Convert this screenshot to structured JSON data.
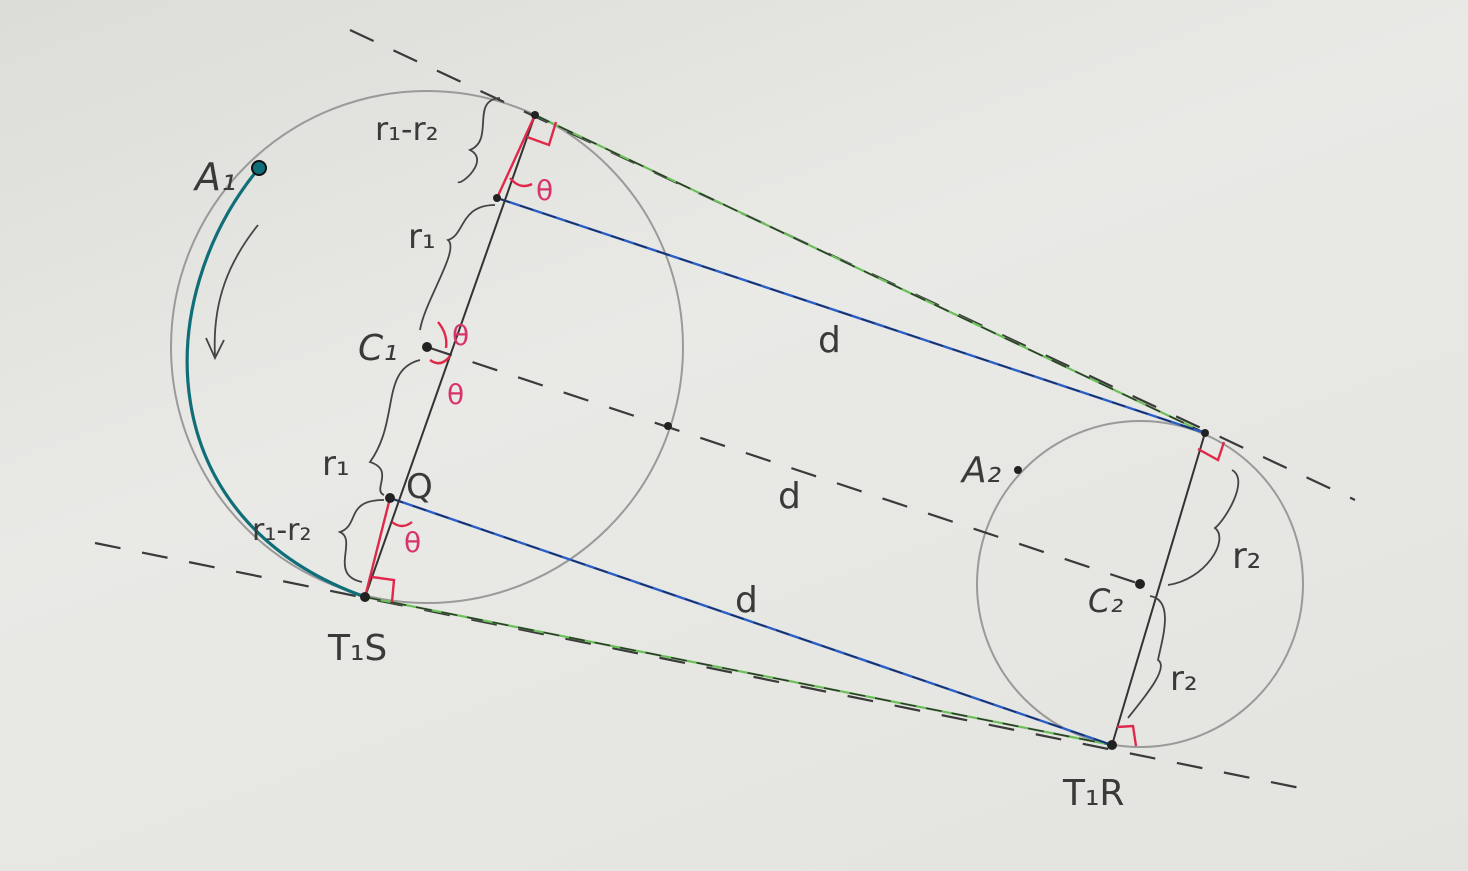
{
  "labels": {
    "A1": "A₁",
    "A2": "A₂",
    "C1": "C₁",
    "C2": "C₂",
    "Q": "Q",
    "T1S": "T₁S",
    "T1R": "T₁R",
    "d_top": "d",
    "d_middle": "d",
    "d_bottom": "d",
    "r1_upper": "r₁",
    "r1_lower": "r₁",
    "r1_minus_r2_upper": "r₁-r₂",
    "r1_minus_r2_lower": "r₁-r₂",
    "r2_upper": "r₂",
    "r2_lower": "r₂",
    "theta_top": "θ",
    "theta_c1_upper": "θ",
    "theta_c1_lower": "θ",
    "theta_q": "θ"
  },
  "colors": {
    "pencil": "#9a9a9a",
    "tangent_green": "#6cc05a",
    "distance_blue": "#2a5fc7",
    "angle_red": "#e0294a",
    "arc_teal": "#0f6e78",
    "theta_pink": "#d8336b"
  }
}
